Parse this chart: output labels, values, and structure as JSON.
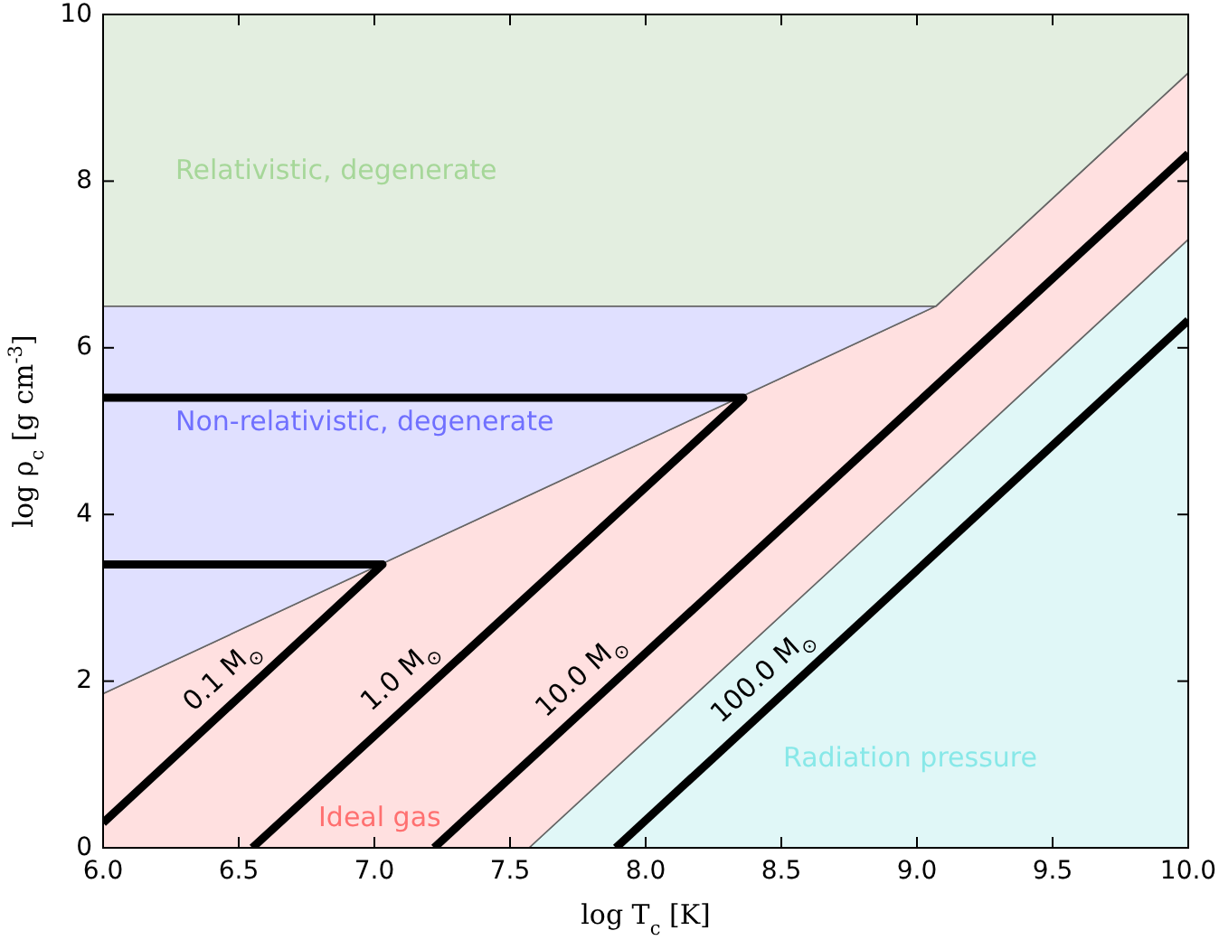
{
  "chart_data": {
    "type": "line",
    "stacked": true,
    "xlabel": "log T$_{c}$ [K]",
    "ylabel": "log ρ$_{c}$ [g cm$^{-3}$]",
    "xlim": [
      6,
      10
    ],
    "ylim": [
      0,
      10
    ],
    "xticks": [
      {
        "value": 6,
        "label": "6.0"
      },
      {
        "value": 6.5,
        "label": "6.5"
      },
      {
        "value": 7,
        "label": "7.0"
      },
      {
        "value": 7.5,
        "label": "7.5"
      },
      {
        "value": 8,
        "label": "8.0"
      },
      {
        "value": 8.5,
        "label": "8.5"
      },
      {
        "value": 9,
        "label": "9.0"
      },
      {
        "value": 9.5,
        "label": "9.5"
      },
      {
        "value": 10,
        "label": "10.0"
      }
    ],
    "yticks": [
      0,
      2,
      4,
      6,
      8,
      10
    ],
    "series": [
      {
        "type": "area",
        "color": "#e0f7f7",
        "x": [
          6,
          7.57,
          9.07,
          10
        ],
        "values": [
          0,
          0,
          4.5,
          7.3
        ]
      },
      {
        "type": "area",
        "color": "#ffe0e0",
        "x": [
          6,
          7.57,
          9.07,
          10
        ],
        "values": [
          1.85,
          4.23,
          2.0,
          2.0
        ]
      },
      {
        "type": "area",
        "color": "#e0e0ff",
        "x": [
          6,
          7.57,
          9.07,
          10
        ],
        "values": [
          4.65,
          2.27,
          0,
          0
        ]
      },
      {
        "type": "area",
        "color": "#e3eee0",
        "x": [
          6,
          7.57,
          9.07,
          10
        ],
        "values": [
          3.5,
          3.5,
          3.5,
          0.7
        ]
      },
      {
        "color": "#000000",
        "x": [
          6,
          7.03,
          6
        ],
        "values": [
          0.3,
          3.4,
          3.4
        ]
      },
      {
        "color": "#000000",
        "x": [
          6.55,
          8.36,
          6
        ],
        "values": [
          0,
          5.4,
          5.4
        ]
      },
      {
        "color": "#000000",
        "x": [
          7.22,
          10
        ],
        "values": [
          0,
          8.33
        ]
      },
      {
        "color": "#000000",
        "x": [
          7.89,
          10
        ],
        "values": [
          0,
          6.33
        ]
      }
    ],
    "annotations": [
      "Radiation pressure",
      "Ideal gas",
      "Non-relativistic, degenerate",
      "Relativistic, degenerate",
      "0.1 M$_{⊙}$",
      "1.0 M$_{⊙}$",
      "10.0 M$_{⊙}$",
      "100.0 M$_{⊙}$"
    ]
  }
}
